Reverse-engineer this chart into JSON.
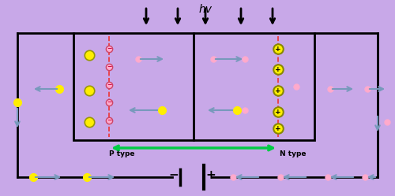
{
  "bg_color": "#c8a8e8",
  "title": "hv",
  "p_label": "P type",
  "n_label": "N type"
}
